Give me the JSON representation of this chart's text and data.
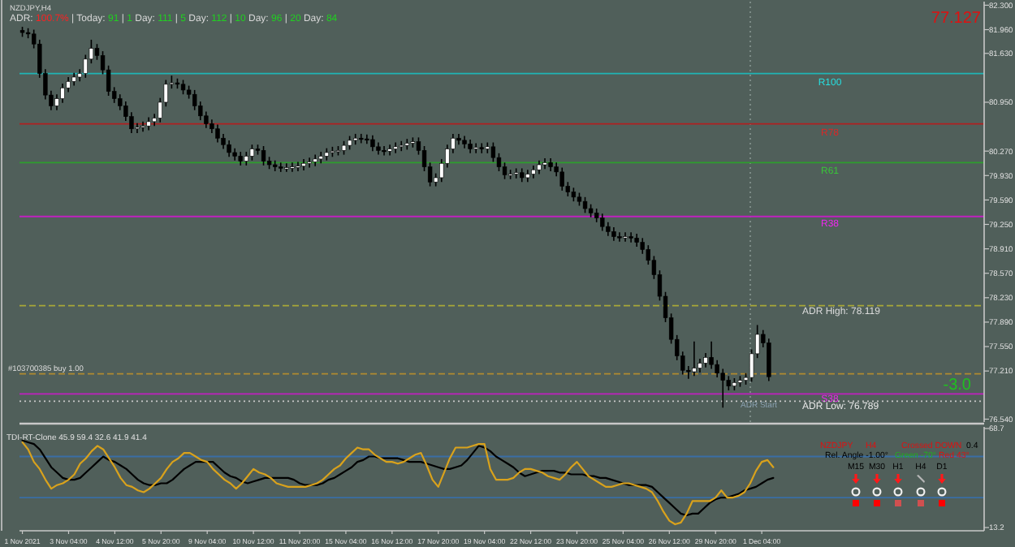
{
  "chart_data": [
    {
      "type": "candlestick",
      "title": "NZDJPY,H4",
      "subtitle": "ADR: 100.7% | Today: 91 | 1 Day: 111 | 5 Day: 112 | 10 Day: 96 | 20 Day: 84",
      "tick_labels": "y",
      "categories": [
        null,
        null,
        null,
        null,
        null,
        null,
        null,
        null,
        null,
        null,
        null,
        null,
        null,
        null,
        null,
        null,
        null,
        null,
        null,
        null,
        null,
        null,
        null,
        null,
        null,
        null,
        null,
        null,
        null,
        null,
        null,
        null,
        null,
        null,
        null,
        null,
        null,
        null,
        null,
        null,
        null,
        null,
        null,
        null,
        null,
        null,
        null,
        null,
        null,
        null,
        null,
        null,
        null,
        null,
        null,
        null,
        null,
        null,
        null,
        null,
        null,
        null,
        null,
        null,
        null,
        null,
        null,
        null,
        null,
        null,
        null,
        null,
        null,
        null,
        null,
        null,
        null,
        null,
        null,
        null,
        null,
        null,
        null,
        null,
        null,
        null,
        null,
        null,
        null,
        null,
        null,
        null,
        null,
        null,
        null,
        null,
        null,
        null,
        null,
        null,
        null,
        null,
        null,
        null,
        null,
        null,
        null,
        null,
        null,
        null,
        null,
        null,
        null,
        null,
        null,
        null,
        null,
        null,
        null,
        null,
        null,
        null,
        null,
        null,
        null,
        null,
        null,
        null,
        null,
        null,
        null,
        null,
        null,
        null,
        null,
        null,
        null,
        null,
        null,
        null,
        null,
        null,
        null,
        null,
        null,
        null,
        null,
        null,
        null,
        null,
        null,
        null,
        null,
        null,
        null,
        null,
        null,
        null,
        null,
        null,
        null,
        null,
        null,
        null,
        null,
        null,
        null,
        null
      ],
      "ohlc": [
        [
          81.95,
          82.0,
          81.86,
          81.92
        ],
        [
          81.92,
          81.98,
          81.84,
          81.9
        ],
        [
          81.9,
          81.96,
          81.7,
          81.76
        ],
        [
          81.76,
          81.82,
          81.29,
          81.35
        ],
        [
          81.35,
          81.41,
          80.99,
          81.05
        ],
        [
          81.05,
          81.11,
          80.84,
          80.9
        ],
        [
          80.9,
          81.06,
          80.84,
          81.0
        ],
        [
          81.0,
          81.21,
          80.94,
          81.15
        ],
        [
          81.15,
          81.3,
          81.09,
          81.24
        ],
        [
          81.24,
          81.36,
          81.18,
          81.3
        ],
        [
          81.3,
          81.41,
          81.24,
          81.35
        ],
        [
          81.35,
          81.61,
          81.29,
          81.55
        ],
        [
          81.55,
          81.82,
          81.49,
          81.7
        ],
        [
          81.7,
          81.76,
          81.54,
          81.6
        ],
        [
          81.6,
          81.66,
          81.34,
          81.4
        ],
        [
          81.4,
          81.46,
          81.04,
          81.1
        ],
        [
          81.1,
          81.16,
          80.94,
          81.0
        ],
        [
          81.0,
          81.06,
          80.84,
          80.9
        ],
        [
          80.9,
          80.96,
          80.69,
          80.75
        ],
        [
          80.75,
          80.81,
          80.52,
          80.58
        ],
        [
          80.58,
          80.66,
          80.52,
          80.6
        ],
        [
          80.6,
          80.68,
          80.54,
          80.62
        ],
        [
          80.62,
          80.74,
          80.56,
          80.68
        ],
        [
          80.68,
          80.79,
          80.62,
          80.73
        ],
        [
          80.73,
          81.01,
          80.67,
          80.95
        ],
        [
          80.95,
          81.26,
          80.89,
          81.2
        ],
        [
          81.2,
          81.32,
          81.14,
          81.22
        ],
        [
          81.22,
          81.28,
          81.14,
          81.2
        ],
        [
          81.2,
          81.26,
          81.06,
          81.12
        ],
        [
          81.12,
          81.18,
          81.0,
          81.06
        ],
        [
          81.06,
          81.12,
          80.84,
          80.9
        ],
        [
          80.9,
          80.96,
          80.7,
          80.76
        ],
        [
          80.76,
          80.82,
          80.59,
          80.65
        ],
        [
          80.65,
          80.71,
          80.52,
          80.58
        ],
        [
          80.58,
          80.64,
          80.39,
          80.45
        ],
        [
          80.45,
          80.51,
          80.3,
          80.36
        ],
        [
          80.36,
          80.42,
          80.19,
          80.25
        ],
        [
          80.25,
          80.31,
          80.14,
          80.2
        ],
        [
          80.2,
          80.26,
          80.07,
          80.13
        ],
        [
          80.13,
          80.26,
          80.07,
          80.2
        ],
        [
          80.2,
          80.36,
          80.14,
          80.3
        ],
        [
          80.3,
          80.36,
          80.22,
          80.28
        ],
        [
          80.28,
          80.34,
          80.07,
          80.13
        ],
        [
          80.13,
          80.19,
          80.02,
          80.08
        ],
        [
          80.08,
          80.14,
          79.99,
          80.05
        ],
        [
          80.05,
          80.11,
          79.98,
          80.04
        ],
        [
          80.04,
          80.1,
          79.98,
          80.04
        ],
        [
          80.04,
          80.11,
          79.98,
          80.05
        ],
        [
          80.05,
          80.12,
          79.99,
          80.06
        ],
        [
          80.06,
          80.16,
          80.0,
          80.1
        ],
        [
          80.1,
          80.18,
          80.04,
          80.12
        ],
        [
          80.12,
          80.22,
          80.06,
          80.16
        ],
        [
          80.16,
          80.26,
          80.1,
          80.2
        ],
        [
          80.2,
          80.31,
          80.14,
          80.25
        ],
        [
          80.25,
          80.33,
          80.19,
          80.27
        ],
        [
          80.27,
          80.34,
          80.21,
          80.28
        ],
        [
          80.28,
          80.41,
          80.22,
          80.35
        ],
        [
          80.35,
          80.48,
          80.29,
          80.42
        ],
        [
          80.42,
          80.51,
          80.36,
          80.45
        ],
        [
          80.45,
          80.51,
          80.38,
          80.44
        ],
        [
          80.44,
          80.5,
          80.37,
          80.43
        ],
        [
          80.43,
          80.49,
          80.27,
          80.33
        ],
        [
          80.33,
          80.39,
          80.22,
          80.28
        ],
        [
          80.28,
          80.34,
          80.21,
          80.27
        ],
        [
          80.27,
          80.36,
          80.21,
          80.3
        ],
        [
          80.3,
          80.39,
          80.24,
          80.33
        ],
        [
          80.33,
          80.41,
          80.27,
          80.35
        ],
        [
          80.35,
          80.44,
          80.29,
          80.38
        ],
        [
          80.38,
          80.46,
          80.32,
          80.4
        ],
        [
          80.4,
          80.46,
          80.22,
          80.28
        ],
        [
          80.28,
          80.34,
          79.99,
          80.05
        ],
        [
          80.05,
          80.11,
          79.78,
          79.84
        ],
        [
          79.84,
          79.96,
          79.78,
          79.9
        ],
        [
          79.9,
          80.16,
          79.84,
          80.1
        ],
        [
          80.1,
          80.36,
          80.04,
          80.3
        ],
        [
          80.3,
          80.51,
          80.24,
          80.45
        ],
        [
          80.45,
          80.51,
          80.36,
          80.42
        ],
        [
          80.42,
          80.48,
          80.31,
          80.37
        ],
        [
          80.37,
          80.43,
          80.24,
          80.3
        ],
        [
          80.3,
          80.38,
          80.24,
          80.32
        ],
        [
          80.32,
          80.38,
          80.24,
          80.3
        ],
        [
          80.3,
          80.39,
          80.24,
          80.33
        ],
        [
          80.33,
          80.39,
          80.12,
          80.18
        ],
        [
          80.18,
          80.24,
          79.99,
          80.05
        ],
        [
          80.05,
          80.11,
          79.88,
          79.94
        ],
        [
          79.94,
          80.01,
          79.88,
          79.95
        ],
        [
          79.95,
          80.03,
          79.89,
          79.97
        ],
        [
          79.97,
          80.03,
          79.84,
          79.9
        ],
        [
          79.9,
          80.01,
          79.84,
          79.95
        ],
        [
          79.95,
          80.07,
          79.89,
          80.01
        ],
        [
          80.01,
          80.14,
          79.95,
          80.08
        ],
        [
          80.08,
          80.17,
          80.02,
          80.11
        ],
        [
          80.11,
          80.17,
          79.99,
          80.05
        ],
        [
          80.05,
          80.11,
          79.92,
          79.98
        ],
        [
          79.98,
          80.04,
          79.72,
          79.78
        ],
        [
          79.78,
          79.84,
          79.64,
          79.7
        ],
        [
          79.7,
          79.76,
          79.57,
          79.63
        ],
        [
          79.63,
          79.69,
          79.51,
          79.57
        ],
        [
          79.57,
          79.63,
          79.41,
          79.47
        ],
        [
          79.47,
          79.53,
          79.35,
          79.41
        ],
        [
          79.41,
          79.47,
          79.28,
          79.34
        ],
        [
          79.34,
          79.4,
          79.16,
          79.22
        ],
        [
          79.22,
          79.28,
          79.09,
          79.15
        ],
        [
          79.15,
          79.21,
          79.02,
          79.08
        ],
        [
          79.08,
          79.14,
          79.01,
          79.07
        ],
        [
          79.07,
          79.14,
          79.01,
          79.08
        ],
        [
          79.08,
          79.14,
          79.0,
          79.06
        ],
        [
          79.06,
          79.12,
          78.94,
          79.0
        ],
        [
          79.0,
          79.06,
          78.84,
          78.9
        ],
        [
          78.9,
          78.96,
          78.69,
          78.75
        ],
        [
          78.75,
          78.81,
          78.49,
          78.55
        ],
        [
          78.55,
          78.61,
          78.19,
          78.25
        ],
        [
          78.25,
          78.31,
          77.89,
          77.95
        ],
        [
          77.95,
          78.01,
          77.59,
          77.65
        ],
        [
          77.65,
          77.71,
          77.36,
          77.42
        ],
        [
          77.42,
          77.48,
          77.16,
          77.22
        ],
        [
          77.22,
          77.28,
          77.1,
          77.2
        ],
        [
          77.2,
          77.62,
          77.14,
          77.25
        ],
        [
          77.25,
          77.38,
          77.19,
          77.32
        ],
        [
          77.32,
          77.46,
          77.26,
          77.4
        ],
        [
          77.4,
          77.62,
          77.24,
          77.3
        ],
        [
          77.3,
          77.36,
          77.12,
          77.18
        ],
        [
          77.18,
          77.24,
          76.7,
          77.08
        ],
        [
          77.08,
          77.14,
          76.94,
          77.0
        ],
        [
          77.0,
          77.11,
          76.94,
          77.05
        ],
        [
          77.05,
          77.14,
          76.99,
          77.08
        ],
        [
          77.08,
          77.18,
          77.02,
          77.12
        ],
        [
          77.12,
          77.51,
          77.06,
          77.45
        ],
        [
          77.45,
          77.85,
          77.39,
          77.72
        ],
        [
          77.72,
          77.78,
          77.54,
          77.6
        ],
        [
          77.6,
          77.66,
          77.07,
          77.13
        ],
        null,
        null,
        null,
        null,
        null,
        null,
        null,
        null,
        null,
        null,
        null,
        null,
        null,
        null,
        null,
        null,
        null,
        null,
        null,
        null,
        null,
        null,
        null,
        null,
        null,
        null,
        null,
        null,
        null,
        null,
        null,
        null,
        null,
        null,
        null,
        null,
        null
      ],
      "ylim": [
        76.5,
        82.35
      ],
      "yticks": [
        {
          "value": 82.3,
          "label": "82.300"
        },
        {
          "value": 81.96,
          "label": "81.960"
        },
        {
          "value": 81.63,
          "label": "81.630"
        },
        {
          "value": 80.95,
          "label": "80.950"
        },
        {
          "value": 80.27,
          "label": "80.270"
        },
        {
          "value": 79.93,
          "label": "79.930"
        },
        {
          "value": 79.59,
          "label": "79.590"
        },
        {
          "value": 79.25,
          "label": "79.250"
        },
        {
          "value": 78.91,
          "label": "78.910"
        },
        {
          "value": 78.57,
          "label": "78.570"
        },
        {
          "value": 78.23,
          "label": "78.230"
        },
        {
          "value": 77.89,
          "label": "77.890"
        },
        {
          "value": 77.55,
          "label": "77.550"
        },
        {
          "value": 77.21,
          "label": "77.210"
        },
        {
          "value": 76.54,
          "label": "76.540"
        }
      ],
      "ref_lines": [
        {
          "axis": "y",
          "value": 81.35,
          "label": "R100",
          "color": "#1fb5b5"
        },
        {
          "axis": "y",
          "value": 80.65,
          "label": "R78",
          "color": "#b02020"
        },
        {
          "axis": "y",
          "value": 80.11,
          "label": "R61",
          "color": "#2e9e2e"
        },
        {
          "axis": "y",
          "value": 79.36,
          "label": "R38",
          "color": "#c020c0"
        },
        {
          "axis": "y",
          "value": 78.119,
          "label": "ADR High: 78.119",
          "color": "#a8a838",
          "line_style": "dashed"
        },
        {
          "axis": "y",
          "value": 77.17,
          "label": "#103700385 buy 1.00",
          "color": "#b08a30",
          "line_style": "dashed"
        },
        {
          "axis": "y",
          "value": 76.89,
          "label": "S38",
          "color": "#c020c0"
        },
        {
          "axis": "y",
          "value": 76.789,
          "label": "ADR Low: 76.789",
          "color": "#c8c8c8",
          "line_style": "dotted"
        }
      ],
      "annotations": [
        "77.127",
        "-3.0",
        "ADR Start"
      ]
    },
    {
      "type": "line",
      "title": "TDI-RT-Clone 45.9 59.4 32.6 41.9 41.4",
      "categories": [
        "1 Nov 2021",
        null,
        null,
        null,
        null,
        null,
        null,
        null,
        "3 Nov 04:00",
        null,
        null,
        null,
        null,
        null,
        null,
        null,
        "4 Nov 12:00",
        null,
        null,
        null,
        null,
        null,
        null,
        null,
        "5 Nov 20:00",
        null,
        null,
        null,
        null,
        null,
        null,
        null,
        "9 Nov 04:00",
        null,
        null,
        null,
        null,
        null,
        null,
        null,
        "10 Nov 12:00",
        null,
        null,
        null,
        null,
        null,
        null,
        null,
        "11 Nov 20:00",
        null,
        null,
        null,
        null,
        null,
        null,
        null,
        "15 Nov 04:00",
        null,
        null,
        null,
        null,
        null,
        null,
        null,
        "16 Nov 12:00",
        null,
        null,
        null,
        null,
        null,
        null,
        null,
        "17 Nov 20:00",
        null,
        null,
        null,
        null,
        null,
        null,
        null,
        "19 Nov 04:00",
        null,
        null,
        null,
        null,
        null,
        null,
        null,
        "22 Nov 12:00",
        null,
        null,
        null,
        null,
        null,
        null,
        null,
        "23 Nov 20:00",
        null,
        null,
        null,
        null,
        null,
        null,
        null,
        "25 Nov 04:00",
        null,
        null,
        null,
        null,
        null,
        null,
        null,
        "26 Nov 12:00",
        null,
        null,
        null,
        null,
        null,
        null,
        null,
        "29 Nov 20:00",
        null,
        null,
        null,
        null,
        null,
        null,
        null,
        "1 Dec 04:00",
        null,
        null,
        null,
        null,
        null,
        null,
        null,
        null,
        null,
        null,
        null,
        null,
        null,
        null,
        null,
        null,
        null,
        null,
        null,
        null,
        null,
        null,
        null,
        null,
        null,
        null,
        null,
        null,
        null,
        null,
        null,
        null,
        null,
        null,
        null,
        null,
        null,
        null
      ],
      "series": [
        {
          "color": "#000000",
          "values": [
            62,
            61,
            60,
            57,
            52,
            47,
            44,
            41,
            40,
            40,
            41,
            44,
            47,
            50,
            53,
            51,
            50,
            48,
            46,
            43,
            40,
            38,
            37,
            37,
            38,
            38,
            40,
            43,
            46,
            48,
            50,
            50,
            50,
            50,
            47,
            44,
            42,
            41,
            39,
            38,
            39,
            40,
            41,
            41,
            41,
            41,
            41,
            40,
            38,
            37,
            37,
            37,
            38,
            40,
            41,
            43,
            45,
            47,
            50,
            51,
            53,
            53,
            52,
            52,
            52,
            52,
            51,
            50,
            50,
            50,
            49,
            48,
            47,
            46,
            46,
            47,
            48,
            51,
            55,
            59,
            58,
            56,
            53,
            51,
            49,
            47,
            44,
            42,
            43,
            44,
            45,
            45,
            45,
            44,
            44,
            43,
            43,
            43,
            42,
            42,
            41,
            41,
            40,
            39,
            38,
            37,
            37,
            37,
            37,
            36,
            33,
            30,
            27,
            24,
            21,
            20,
            21,
            21,
            24,
            27,
            29,
            30,
            30,
            31,
            32,
            34,
            35,
            36,
            38,
            40,
            41,
            null,
            null,
            null,
            null,
            null,
            null,
            null,
            null,
            null,
            null,
            null,
            null,
            null,
            null,
            null,
            null,
            null,
            null,
            null,
            null,
            null,
            null,
            null,
            null,
            null,
            null,
            null,
            null,
            null,
            null,
            null,
            null,
            null,
            null,
            null,
            null
          ]
        },
        {
          "color": "#d9a21c",
          "values": [
            61,
            57,
            50,
            46,
            40,
            35,
            37,
            38,
            40,
            43,
            49,
            52,
            56,
            59,
            57,
            52,
            47,
            41,
            37,
            36,
            34,
            33,
            35,
            38,
            41,
            46,
            50,
            52,
            55,
            55,
            53,
            51,
            50,
            46,
            43,
            40,
            38,
            35,
            38,
            42,
            46,
            44,
            43,
            41,
            38,
            37,
            36,
            36,
            36,
            36,
            37,
            38,
            40,
            43,
            46,
            48,
            52,
            55,
            58,
            57,
            57,
            54,
            52,
            50,
            50,
            49,
            50,
            52,
            54,
            55,
            48,
            40,
            36,
            44,
            52,
            58,
            58,
            58,
            59,
            60,
            60,
            46,
            40,
            40,
            40,
            41,
            44,
            46,
            46,
            45,
            44,
            42,
            41,
            40,
            43,
            47,
            50,
            46,
            42,
            40,
            38,
            36,
            36,
            37,
            38,
            38,
            37,
            36,
            35,
            33,
            28,
            22,
            17,
            15,
            16,
            21,
            28,
            28,
            28,
            28,
            30,
            34,
            30,
            30,
            31,
            33,
            38,
            45,
            50,
            51,
            47,
            null,
            null,
            null,
            null,
            null,
            null,
            null,
            null,
            null,
            null,
            null,
            null,
            null,
            null,
            null,
            null,
            null,
            null,
            null,
            null,
            null,
            null,
            null,
            null,
            null,
            null,
            null,
            null,
            null,
            null,
            null,
            null,
            null,
            null,
            null,
            null
          ]
        }
      ],
      "ylim": [
        13.2,
        68.7
      ],
      "yticks": [
        13.2,
        68.7
      ],
      "ref_lines": [
        {
          "axis": "y",
          "value": 53,
          "color": "#3a6ea5"
        },
        {
          "axis": "y",
          "value": 30,
          "color": "#3a6ea5"
        }
      ],
      "annotations": [
        "NZDJPY",
        "H4",
        "Crossed DOWN",
        "0.4",
        "Rel. Angle -1.00°",
        "Green -70°",
        "Red 43°",
        "M15",
        "M30",
        "H1",
        "H4",
        "D1"
      ]
    }
  ]
}
